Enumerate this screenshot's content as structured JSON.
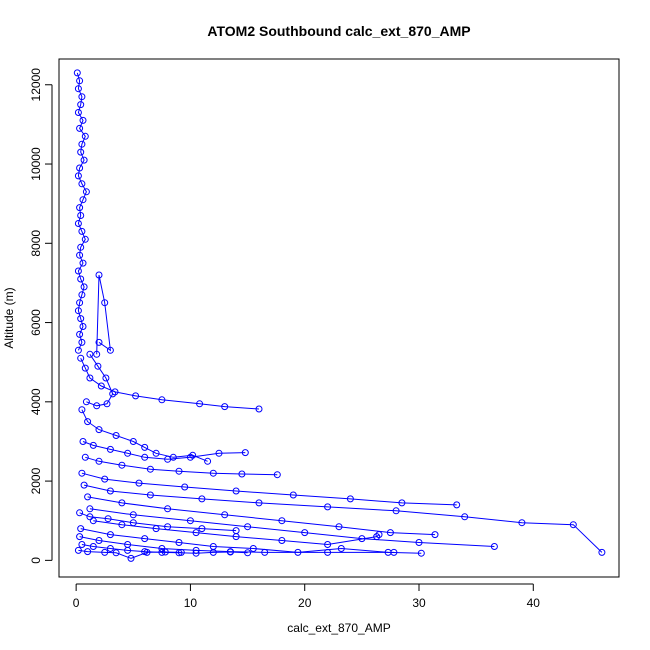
{
  "chart_data": {
    "type": "line",
    "title": "ATOM2 Southbound calc_ext_870_AMP",
    "xlabel": "calc_ext_870_AMP",
    "ylabel": "Altitude (m)",
    "xlim": [
      -1.5,
      47.5
    ],
    "ylim": [
      -420,
      12650
    ],
    "xticks": [
      0,
      10,
      20,
      30,
      40
    ],
    "yticks": [
      0,
      2000,
      4000,
      6000,
      8000,
      10000,
      12000
    ],
    "grid": false,
    "legend": "none",
    "series_color": "#0000ff",
    "marker": "open-circle",
    "series": [
      {
        "x": [
          0.1,
          0.3,
          0.2,
          0.5,
          0.4,
          0.2,
          0.6,
          0.3,
          0.8,
          0.5,
          0.4,
          0.7,
          0.3,
          0.2,
          0.5,
          0.9,
          0.6,
          0.3,
          0.4,
          0.2,
          0.5,
          0.8,
          0.4,
          0.3,
          0.6,
          0.2,
          0.4,
          0.7,
          0.5,
          0.3,
          0.2,
          0.4,
          0.6,
          0.3,
          0.5,
          0.2
        ],
        "y": [
          12300,
          12100,
          11900,
          11700,
          11500,
          11300,
          11100,
          10900,
          10700,
          10500,
          10300,
          10100,
          9900,
          9700,
          9500,
          9300,
          9100,
          8900,
          8700,
          8500,
          8300,
          8100,
          7900,
          7700,
          7500,
          7300,
          7100,
          6900,
          6700,
          6500,
          6300,
          6100,
          5900,
          5700,
          5500,
          5300
        ]
      },
      {
        "x": [
          0.4,
          0.8,
          1.2,
          2.2,
          3.4,
          5.2,
          7.5,
          10.8,
          13.0,
          16.0
        ],
        "y": [
          5100,
          4850,
          4600,
          4400,
          4250,
          4150,
          4050,
          3950,
          3880,
          3820
        ]
      },
      {
        "x": [
          0.5,
          1.0,
          2.0,
          3.5,
          5.0,
          6.0,
          7.0,
          8.5,
          10.2,
          11.5
        ],
        "y": [
          3800,
          3500,
          3300,
          3150,
          3000,
          2850,
          2700,
          2600,
          2650,
          2500
        ]
      },
      {
        "x": [
          0.6,
          1.5,
          3.0,
          4.5,
          6.0,
          8.0,
          10.0,
          12.5,
          14.8
        ],
        "y": [
          3000,
          2900,
          2800,
          2700,
          2600,
          2550,
          2600,
          2700,
          2720
        ]
      },
      {
        "x": [
          0.8,
          2.0,
          4.0,
          6.5,
          9.0,
          12.0,
          14.5,
          17.6
        ],
        "y": [
          2600,
          2500,
          2400,
          2300,
          2250,
          2200,
          2180,
          2160
        ]
      },
      {
        "x": [
          0.5,
          2.5,
          5.5,
          9.5,
          14.0,
          19.0,
          24.0,
          28.5,
          33.3
        ],
        "y": [
          2200,
          2050,
          1950,
          1850,
          1750,
          1650,
          1550,
          1450,
          1400
        ]
      },
      {
        "x": [
          0.7,
          3.0,
          6.5,
          11.0,
          16.0,
          22.0,
          28.0,
          34.0,
          39.0,
          43.5,
          46.0
        ],
        "y": [
          1900,
          1750,
          1650,
          1550,
          1450,
          1350,
          1250,
          1100,
          950,
          900,
          200
        ]
      },
      {
        "x": [
          1.0,
          4.0,
          8.0,
          13.0,
          18.0,
          23.0,
          27.5,
          31.4
        ],
        "y": [
          1600,
          1450,
          1300,
          1150,
          1000,
          850,
          700,
          650
        ]
      },
      {
        "x": [
          1.2,
          5.0,
          10.0,
          15.0,
          20.0,
          25.0,
          30.0,
          36.6
        ],
        "y": [
          1300,
          1150,
          1000,
          850,
          700,
          550,
          450,
          350
        ]
      },
      {
        "x": [
          1.5,
          4.0,
          7.0,
          10.5,
          14.0,
          18.0,
          22.0,
          26.3,
          26.5
        ],
        "y": [
          1000,
          900,
          800,
          700,
          600,
          500,
          400,
          600,
          650
        ]
      },
      {
        "x": [
          0.4,
          3.0,
          6.0,
          9.0,
          12.0,
          15.5,
          19.4,
          23.2,
          27.3,
          30.2
        ],
        "y": [
          800,
          650,
          550,
          450,
          350,
          300,
          200,
          300,
          200,
          180
        ]
      },
      {
        "x": [
          0.3,
          2.0,
          4.5,
          7.5,
          10.5,
          13.5,
          16.5,
          22.0,
          27.8
        ],
        "y": [
          600,
          500,
          400,
          300,
          250,
          220,
          200,
          200,
          200
        ]
      },
      {
        "x": [
          0.5,
          1.5,
          3.0,
          4.5,
          6.0,
          7.5,
          9.0,
          10.5,
          12.0,
          13.5,
          15.0
        ],
        "y": [
          400,
          350,
          300,
          250,
          220,
          200,
          190,
          180,
          200,
          210,
          190
        ]
      },
      {
        "x": [
          0.2,
          1.0,
          2.5,
          3.5,
          4.8,
          6.2,
          7.8,
          9.2
        ],
        "y": [
          250,
          220,
          200,
          190,
          50,
          200,
          210,
          200
        ]
      },
      {
        "x": [
          0.3,
          1.2,
          2.8,
          5.0,
          8.0,
          11.0,
          14.0
        ],
        "y": [
          1200,
          1100,
          1050,
          950,
          850,
          800,
          750
        ]
      },
      {
        "x": [
          2.0,
          3.0,
          2.5,
          2.0,
          1.8
        ],
        "y": [
          5500,
          5300,
          6500,
          7200,
          5200
        ]
      },
      {
        "x": [
          0.9,
          1.8,
          2.7,
          3.2,
          2.6,
          1.9,
          1.2
        ],
        "y": [
          4000,
          3900,
          3950,
          4200,
          4600,
          4900,
          5200
        ]
      }
    ]
  }
}
